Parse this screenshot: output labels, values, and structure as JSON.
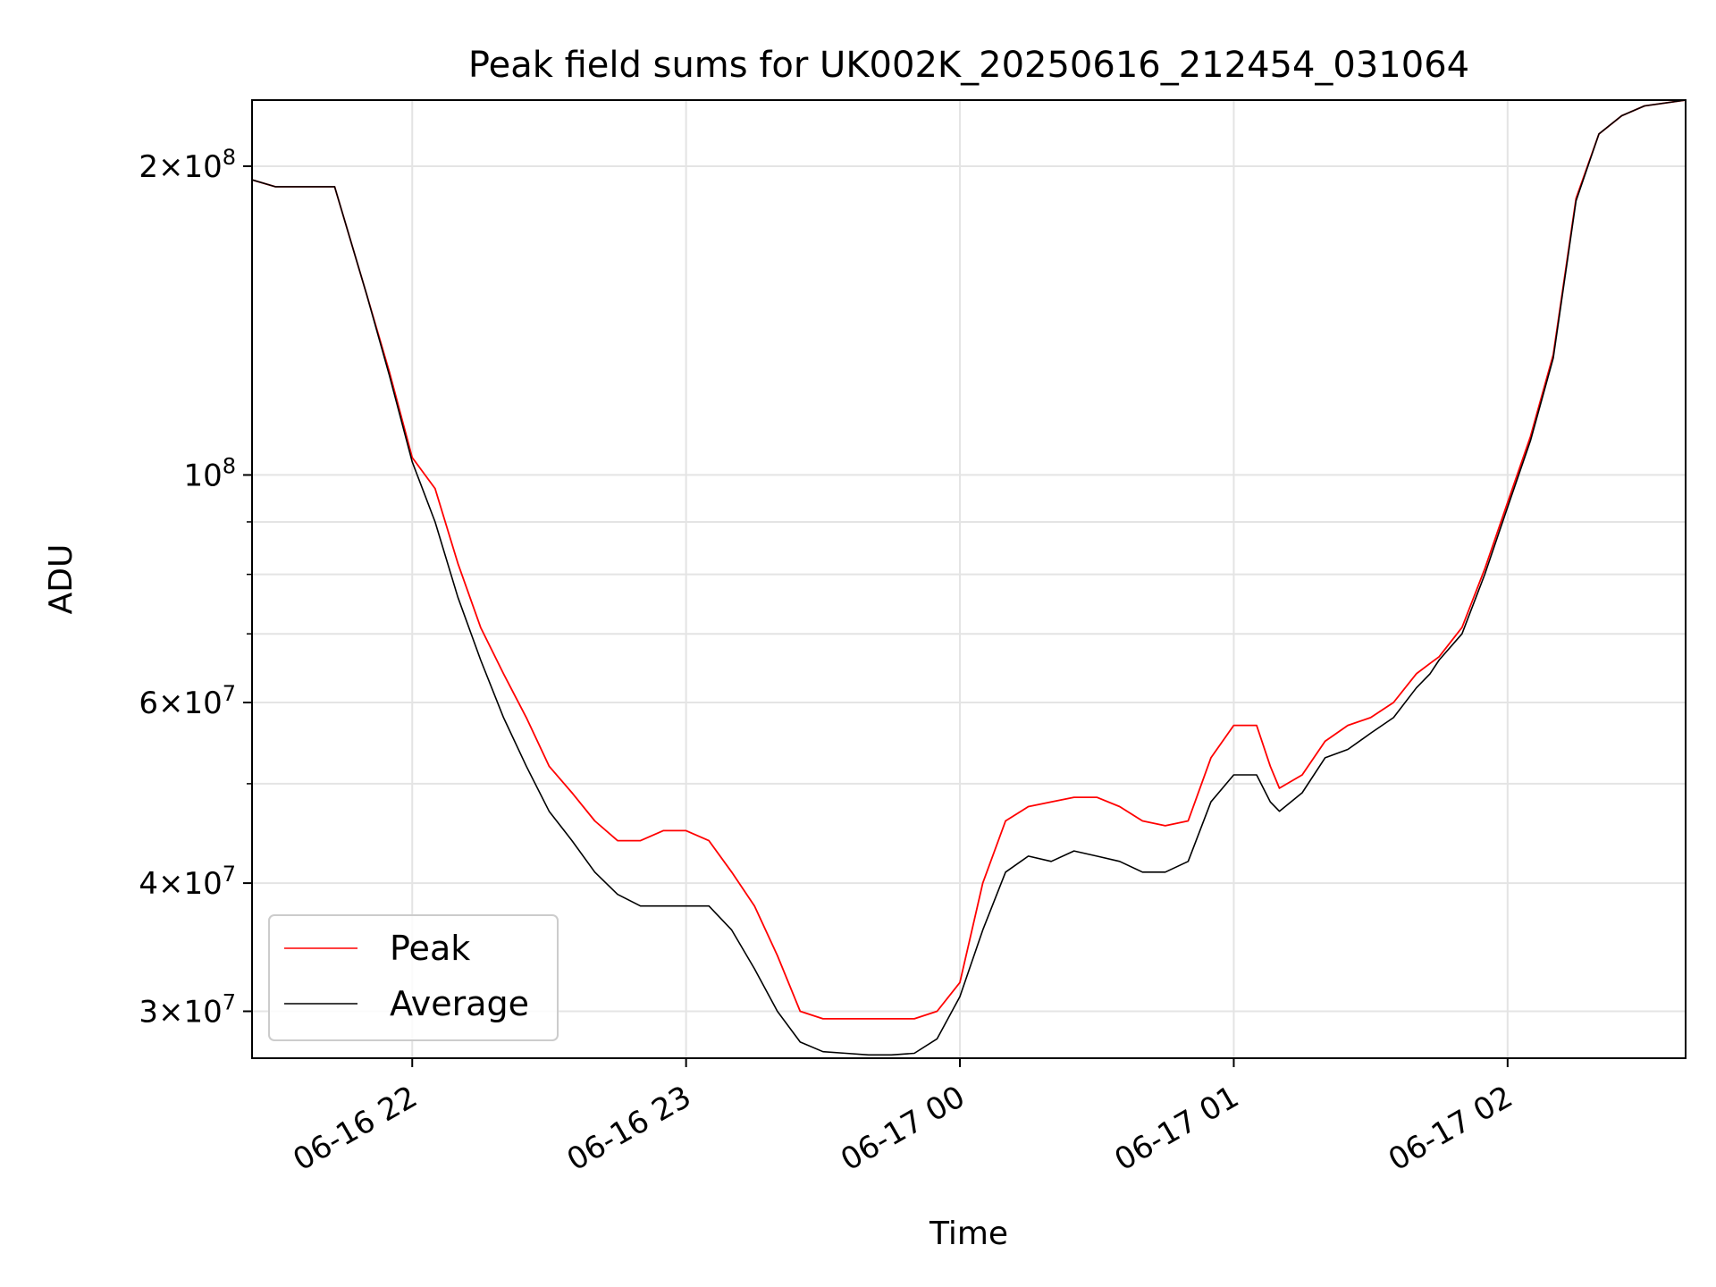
{
  "chart_data": {
    "type": "line",
    "title": "Peak field sums for UK002K_20250616_212454_031064",
    "xlabel": "Time",
    "ylabel": "ADU",
    "yscale": "log",
    "xlim": [
      "2025-06-16 21:24:54",
      "2025-06-17 02:39:00"
    ],
    "ylim": [
      27000000,
      232000000
    ],
    "grid": true,
    "legend_position": "lower-left",
    "x_ticks": [
      {
        "time": "2025-06-16 22:00",
        "label": "06-16 22"
      },
      {
        "time": "2025-06-16 23:00",
        "label": "06-16 23"
      },
      {
        "time": "2025-06-17 00:00",
        "label": "06-17 00"
      },
      {
        "time": "2025-06-17 01:00",
        "label": "06-17 01"
      },
      {
        "time": "2025-06-17 02:00",
        "label": "06-17 02"
      }
    ],
    "y_ticks": [
      {
        "value": 30000000,
        "mantissa": "3",
        "exponent": "7"
      },
      {
        "value": 40000000,
        "mantissa": "4",
        "exponent": "7"
      },
      {
        "value": 60000000,
        "mantissa": "6",
        "exponent": "7"
      },
      {
        "value": 100000000,
        "mantissa": "",
        "exponent": "8"
      },
      {
        "value": 200000000,
        "mantissa": "2",
        "exponent": "8"
      }
    ],
    "y_minor_ticks": [
      50000000,
      70000000,
      80000000,
      90000000
    ],
    "series": [
      {
        "name": "Average",
        "color": "#000000",
        "time": [
          "2025-06-16 21:24:54",
          "2025-06-16 21:30",
          "2025-06-16 21:40",
          "2025-06-16 21:43",
          "2025-06-16 21:50",
          "2025-06-16 21:55",
          "2025-06-16 22:00",
          "2025-06-16 22:05",
          "2025-06-16 22:10",
          "2025-06-16 22:15",
          "2025-06-16 22:20",
          "2025-06-16 22:25",
          "2025-06-16 22:30",
          "2025-06-16 22:35",
          "2025-06-16 22:40",
          "2025-06-16 22:45",
          "2025-06-16 22:50",
          "2025-06-16 22:55",
          "2025-06-16 23:00",
          "2025-06-16 23:05",
          "2025-06-16 23:10",
          "2025-06-16 23:15",
          "2025-06-16 23:20",
          "2025-06-16 23:25",
          "2025-06-16 23:30",
          "2025-06-16 23:35",
          "2025-06-16 23:40",
          "2025-06-16 23:45",
          "2025-06-16 23:50",
          "2025-06-16 23:55",
          "2025-06-17 00:00",
          "2025-06-17 00:05",
          "2025-06-17 00:10",
          "2025-06-17 00:15",
          "2025-06-17 00:20",
          "2025-06-17 00:25",
          "2025-06-17 00:30",
          "2025-06-17 00:35",
          "2025-06-17 00:40",
          "2025-06-17 00:45",
          "2025-06-17 00:50",
          "2025-06-17 00:55",
          "2025-06-17 01:00",
          "2025-06-17 01:05",
          "2025-06-17 01:08",
          "2025-06-17 01:10",
          "2025-06-17 01:15",
          "2025-06-17 01:20",
          "2025-06-17 01:25",
          "2025-06-17 01:30",
          "2025-06-17 01:35",
          "2025-06-17 01:40",
          "2025-06-17 01:43",
          "2025-06-17 01:45",
          "2025-06-17 01:50",
          "2025-06-17 01:55",
          "2025-06-17 02:00",
          "2025-06-17 02:05",
          "2025-06-17 02:10",
          "2025-06-17 02:15",
          "2025-06-17 02:20",
          "2025-06-17 02:25",
          "2025-06-17 02:30",
          "2025-06-17 02:39"
        ],
        "values": [
          194000000,
          191000000,
          191000000,
          191000000,
          150000000,
          125000000,
          103000000,
          90000000,
          76000000,
          66000000,
          58000000,
          52000000,
          47000000,
          44000000,
          41000000,
          39000000,
          38000000,
          38000000,
          38000000,
          38000000,
          36000000,
          33000000,
          30000000,
          28000000,
          27400000,
          27300000,
          27200000,
          27200000,
          27300000,
          28200000,
          31000000,
          36000000,
          41000000,
          42500000,
          42000000,
          43000000,
          42500000,
          42000000,
          41000000,
          41000000,
          42000000,
          48000000,
          51000000,
          51000000,
          48000000,
          47000000,
          49000000,
          53000000,
          54000000,
          56000000,
          58000000,
          62000000,
          64000000,
          66000000,
          70000000,
          80000000,
          93000000,
          108000000,
          130000000,
          185000000,
          215000000,
          224000000,
          229000000,
          232000000
        ]
      },
      {
        "name": "Peak",
        "color": "#ff0000",
        "time": [
          "2025-06-16 21:24:54",
          "2025-06-16 21:30",
          "2025-06-16 21:40",
          "2025-06-16 21:43",
          "2025-06-16 21:50",
          "2025-06-16 21:55",
          "2025-06-16 22:00",
          "2025-06-16 22:05",
          "2025-06-16 22:10",
          "2025-06-16 22:15",
          "2025-06-16 22:20",
          "2025-06-16 22:25",
          "2025-06-16 22:30",
          "2025-06-16 22:35",
          "2025-06-16 22:40",
          "2025-06-16 22:45",
          "2025-06-16 22:50",
          "2025-06-16 22:55",
          "2025-06-16 23:00",
          "2025-06-16 23:05",
          "2025-06-16 23:10",
          "2025-06-16 23:15",
          "2025-06-16 23:20",
          "2025-06-16 23:25",
          "2025-06-16 23:30",
          "2025-06-16 23:35",
          "2025-06-16 23:40",
          "2025-06-16 23:45",
          "2025-06-16 23:50",
          "2025-06-16 23:55",
          "2025-06-17 00:00",
          "2025-06-17 00:05",
          "2025-06-17 00:10",
          "2025-06-17 00:15",
          "2025-06-17 00:20",
          "2025-06-17 00:25",
          "2025-06-17 00:30",
          "2025-06-17 00:35",
          "2025-06-17 00:40",
          "2025-06-17 00:45",
          "2025-06-17 00:50",
          "2025-06-17 00:55",
          "2025-06-17 01:00",
          "2025-06-17 01:05",
          "2025-06-17 01:08",
          "2025-06-17 01:10",
          "2025-06-17 01:15",
          "2025-06-17 01:20",
          "2025-06-17 01:25",
          "2025-06-17 01:30",
          "2025-06-17 01:35",
          "2025-06-17 01:40",
          "2025-06-17 01:43",
          "2025-06-17 01:45",
          "2025-06-17 01:50",
          "2025-06-17 01:55",
          "2025-06-17 02:00",
          "2025-06-17 02:05",
          "2025-06-17 02:10",
          "2025-06-17 02:15",
          "2025-06-17 02:20",
          "2025-06-17 02:25",
          "2025-06-17 02:30",
          "2025-06-17 02:39"
        ],
        "values": [
          194000000,
          191000000,
          191000000,
          191000000,
          150000000,
          126000000,
          104000000,
          97000000,
          82000000,
          71000000,
          64000000,
          58000000,
          52000000,
          49000000,
          46000000,
          44000000,
          44000000,
          45000000,
          45000000,
          44000000,
          41000000,
          38000000,
          34000000,
          30000000,
          29500000,
          29500000,
          29500000,
          29500000,
          29500000,
          30000000,
          32000000,
          40000000,
          46000000,
          47500000,
          48000000,
          48500000,
          48500000,
          47500000,
          46000000,
          45500000,
          46000000,
          53000000,
          57000000,
          57000000,
          52000000,
          49500000,
          51000000,
          55000000,
          57000000,
          58000000,
          60000000,
          64000000,
          65500000,
          66500000,
          71000000,
          81000000,
          94000000,
          109000000,
          131000000,
          186000000,
          215000000,
          224000000,
          229000000,
          232000000
        ]
      }
    ],
    "legend_entries": [
      "Peak",
      "Average"
    ]
  }
}
